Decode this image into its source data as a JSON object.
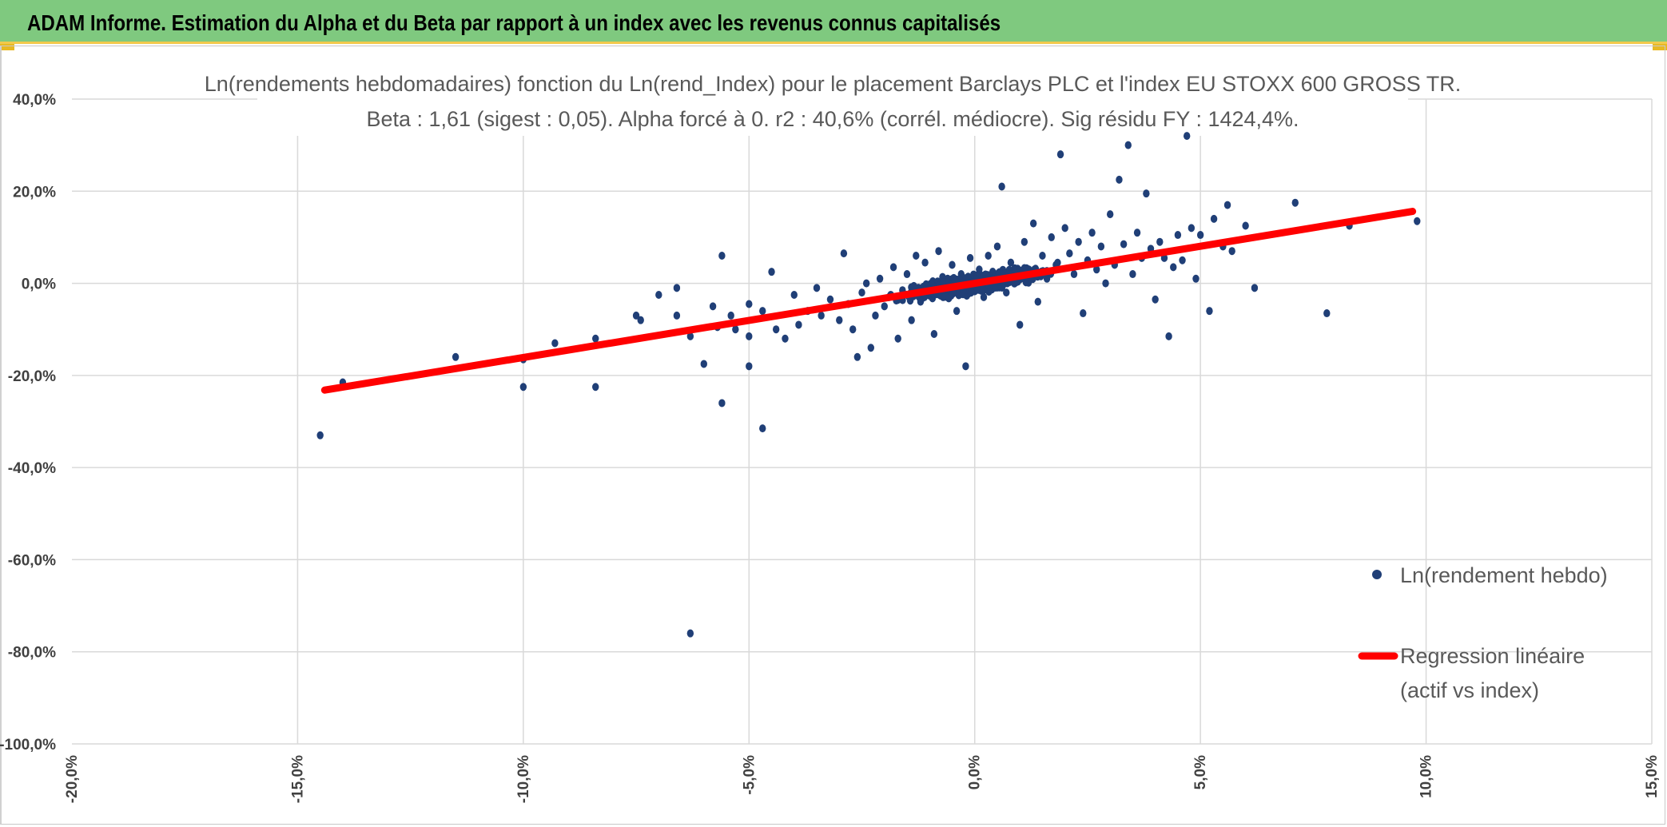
{
  "banner": {
    "title": "ADAM Informe. Estimation du Alpha et du Beta par rapport à un index avec les revenus connus capitalisés",
    "color": "#7fc97f",
    "accent": "#e8b923"
  },
  "chart_data": {
    "type": "scatter",
    "title": "Ln(rendements hebdomadaires) fonction du Ln(rend_Index) pour le placement Barclays PLC et l'index EU STOXX 600 GROSS TR.",
    "subtitle": "Beta : 1,61 (sigest : 0,05). Alpha forcé à 0. r2 : 40,6% (corrél. médiocre). Sig résidu FY : 1424,4%.",
    "xlabel": "",
    "ylabel": "",
    "xlim": [
      -0.2,
      0.15
    ],
    "ylim": [
      -1.0,
      0.4
    ],
    "x_ticks": [
      -0.2,
      -0.15,
      -0.1,
      -0.05,
      0.0,
      0.05,
      0.1,
      0.15
    ],
    "x_tick_labels": [
      "-20,0%",
      "-15,0%",
      "-10,0%",
      "-5,0%",
      "0,0%",
      "5,0%",
      "10,0%",
      "15,0%"
    ],
    "y_ticks": [
      0.4,
      0.2,
      0.0,
      -0.2,
      -0.4,
      -0.6,
      -0.8,
      -1.0
    ],
    "y_tick_labels": [
      "40,0%",
      "20,0%",
      "0,0%",
      "-20,0%",
      "-40,0%",
      "-60,0%",
      "-80,0%",
      "-100,0%"
    ],
    "grid": true,
    "legend_position": "right",
    "series": [
      {
        "name": "Ln(rendement hebdo)",
        "kind": "scatter",
        "color": "#203f77",
        "points": [
          [
            -0.145,
            -0.33
          ],
          [
            -0.14,
            -0.215
          ],
          [
            -0.115,
            -0.16
          ],
          [
            -0.1,
            -0.165
          ],
          [
            -0.1,
            -0.225
          ],
          [
            -0.093,
            -0.13
          ],
          [
            -0.084,
            -0.12
          ],
          [
            -0.084,
            -0.225
          ],
          [
            -0.075,
            -0.07
          ],
          [
            -0.074,
            -0.08
          ],
          [
            -0.07,
            -0.025
          ],
          [
            -0.066,
            -0.01
          ],
          [
            -0.066,
            -0.07
          ],
          [
            -0.063,
            -0.115
          ],
          [
            -0.063,
            -0.76
          ],
          [
            -0.06,
            -0.175
          ],
          [
            -0.058,
            -0.05
          ],
          [
            -0.057,
            -0.095
          ],
          [
            -0.056,
            0.06
          ],
          [
            -0.056,
            -0.26
          ],
          [
            -0.054,
            -0.07
          ],
          [
            -0.053,
            -0.1
          ],
          [
            -0.05,
            -0.115
          ],
          [
            -0.05,
            -0.045
          ],
          [
            -0.05,
            -0.18
          ],
          [
            -0.047,
            -0.315
          ],
          [
            -0.047,
            -0.06
          ],
          [
            -0.045,
            0.025
          ],
          [
            -0.044,
            -0.1
          ],
          [
            -0.042,
            -0.12
          ],
          [
            -0.04,
            -0.025
          ],
          [
            -0.039,
            -0.09
          ],
          [
            -0.037,
            -0.06
          ],
          [
            -0.035,
            -0.01
          ],
          [
            -0.034,
            -0.07
          ],
          [
            -0.032,
            -0.035
          ],
          [
            -0.03,
            -0.08
          ],
          [
            -0.029,
            0.065
          ],
          [
            -0.028,
            -0.045
          ],
          [
            -0.027,
            -0.1
          ],
          [
            -0.026,
            -0.16
          ],
          [
            -0.025,
            -0.02
          ],
          [
            -0.024,
            0.0
          ],
          [
            -0.023,
            -0.14
          ],
          [
            -0.022,
            -0.07
          ],
          [
            -0.021,
            0.01
          ],
          [
            -0.02,
            -0.05
          ],
          [
            -0.019,
            -0.03
          ],
          [
            -0.018,
            0.035
          ],
          [
            -0.017,
            -0.12
          ],
          [
            -0.016,
            -0.015
          ],
          [
            -0.015,
            0.02
          ],
          [
            -0.014,
            -0.08
          ],
          [
            -0.013,
            0.06
          ],
          [
            -0.012,
            -0.04
          ],
          [
            -0.011,
            0.045
          ],
          [
            -0.01,
            -0.02
          ],
          [
            -0.009,
            -0.11
          ],
          [
            -0.008,
            0.07
          ],
          [
            -0.007,
            -0.03
          ],
          [
            -0.006,
            0.01
          ],
          [
            -0.005,
            0.04
          ],
          [
            -0.004,
            -0.06
          ],
          [
            -0.003,
            0.02
          ],
          [
            -0.002,
            -0.18
          ],
          [
            -0.001,
            0.055
          ],
          [
            0.0,
            -0.01
          ],
          [
            0.001,
            0.03
          ],
          [
            0.002,
            -0.03
          ],
          [
            0.003,
            0.06
          ],
          [
            0.004,
            0.005
          ],
          [
            0.005,
            0.08
          ],
          [
            0.006,
            0.21
          ],
          [
            0.007,
            -0.02
          ],
          [
            0.008,
            0.045
          ],
          [
            0.009,
            0.025
          ],
          [
            0.01,
            -0.09
          ],
          [
            0.011,
            0.09
          ],
          [
            0.012,
            0.03
          ],
          [
            0.013,
            0.13
          ],
          [
            0.014,
            -0.04
          ],
          [
            0.015,
            0.06
          ],
          [
            0.016,
            0.01
          ],
          [
            0.017,
            0.1
          ],
          [
            0.018,
            0.04
          ],
          [
            0.019,
            0.28
          ],
          [
            0.02,
            0.12
          ],
          [
            0.021,
            0.065
          ],
          [
            0.022,
            0.02
          ],
          [
            0.023,
            0.09
          ],
          [
            0.024,
            -0.065
          ],
          [
            0.025,
            0.05
          ],
          [
            0.026,
            0.11
          ],
          [
            0.027,
            0.03
          ],
          [
            0.028,
            0.08
          ],
          [
            0.029,
            0.0
          ],
          [
            0.03,
            0.15
          ],
          [
            0.031,
            0.04
          ],
          [
            0.032,
            0.225
          ],
          [
            0.033,
            0.085
          ],
          [
            0.034,
            0.3
          ],
          [
            0.035,
            0.02
          ],
          [
            0.036,
            0.11
          ],
          [
            0.037,
            0.055
          ],
          [
            0.038,
            0.195
          ],
          [
            0.039,
            0.075
          ],
          [
            0.04,
            -0.035
          ],
          [
            0.041,
            0.09
          ],
          [
            0.042,
            0.055
          ],
          [
            0.043,
            -0.115
          ],
          [
            0.044,
            0.035
          ],
          [
            0.045,
            0.105
          ],
          [
            0.046,
            0.05
          ],
          [
            0.047,
            0.32
          ],
          [
            0.048,
            0.12
          ],
          [
            0.049,
            0.01
          ],
          [
            0.05,
            0.105
          ],
          [
            0.052,
            -0.06
          ],
          [
            0.053,
            0.14
          ],
          [
            0.055,
            0.08
          ],
          [
            0.056,
            0.17
          ],
          [
            0.057,
            0.07
          ],
          [
            0.06,
            0.125
          ],
          [
            0.062,
            -0.01
          ],
          [
            0.071,
            0.175
          ],
          [
            0.078,
            -0.065
          ],
          [
            0.083,
            0.125
          ],
          [
            0.098,
            0.135
          ]
        ]
      },
      {
        "name": "Regression linéaire (actif vs index)",
        "name_line1": "Regression linéaire",
        "name_line2": "(actif vs index)",
        "kind": "line",
        "color": "#ff0000",
        "x_range": [
          -0.144,
          0.097
        ],
        "beta": 1.61
      }
    ]
  }
}
